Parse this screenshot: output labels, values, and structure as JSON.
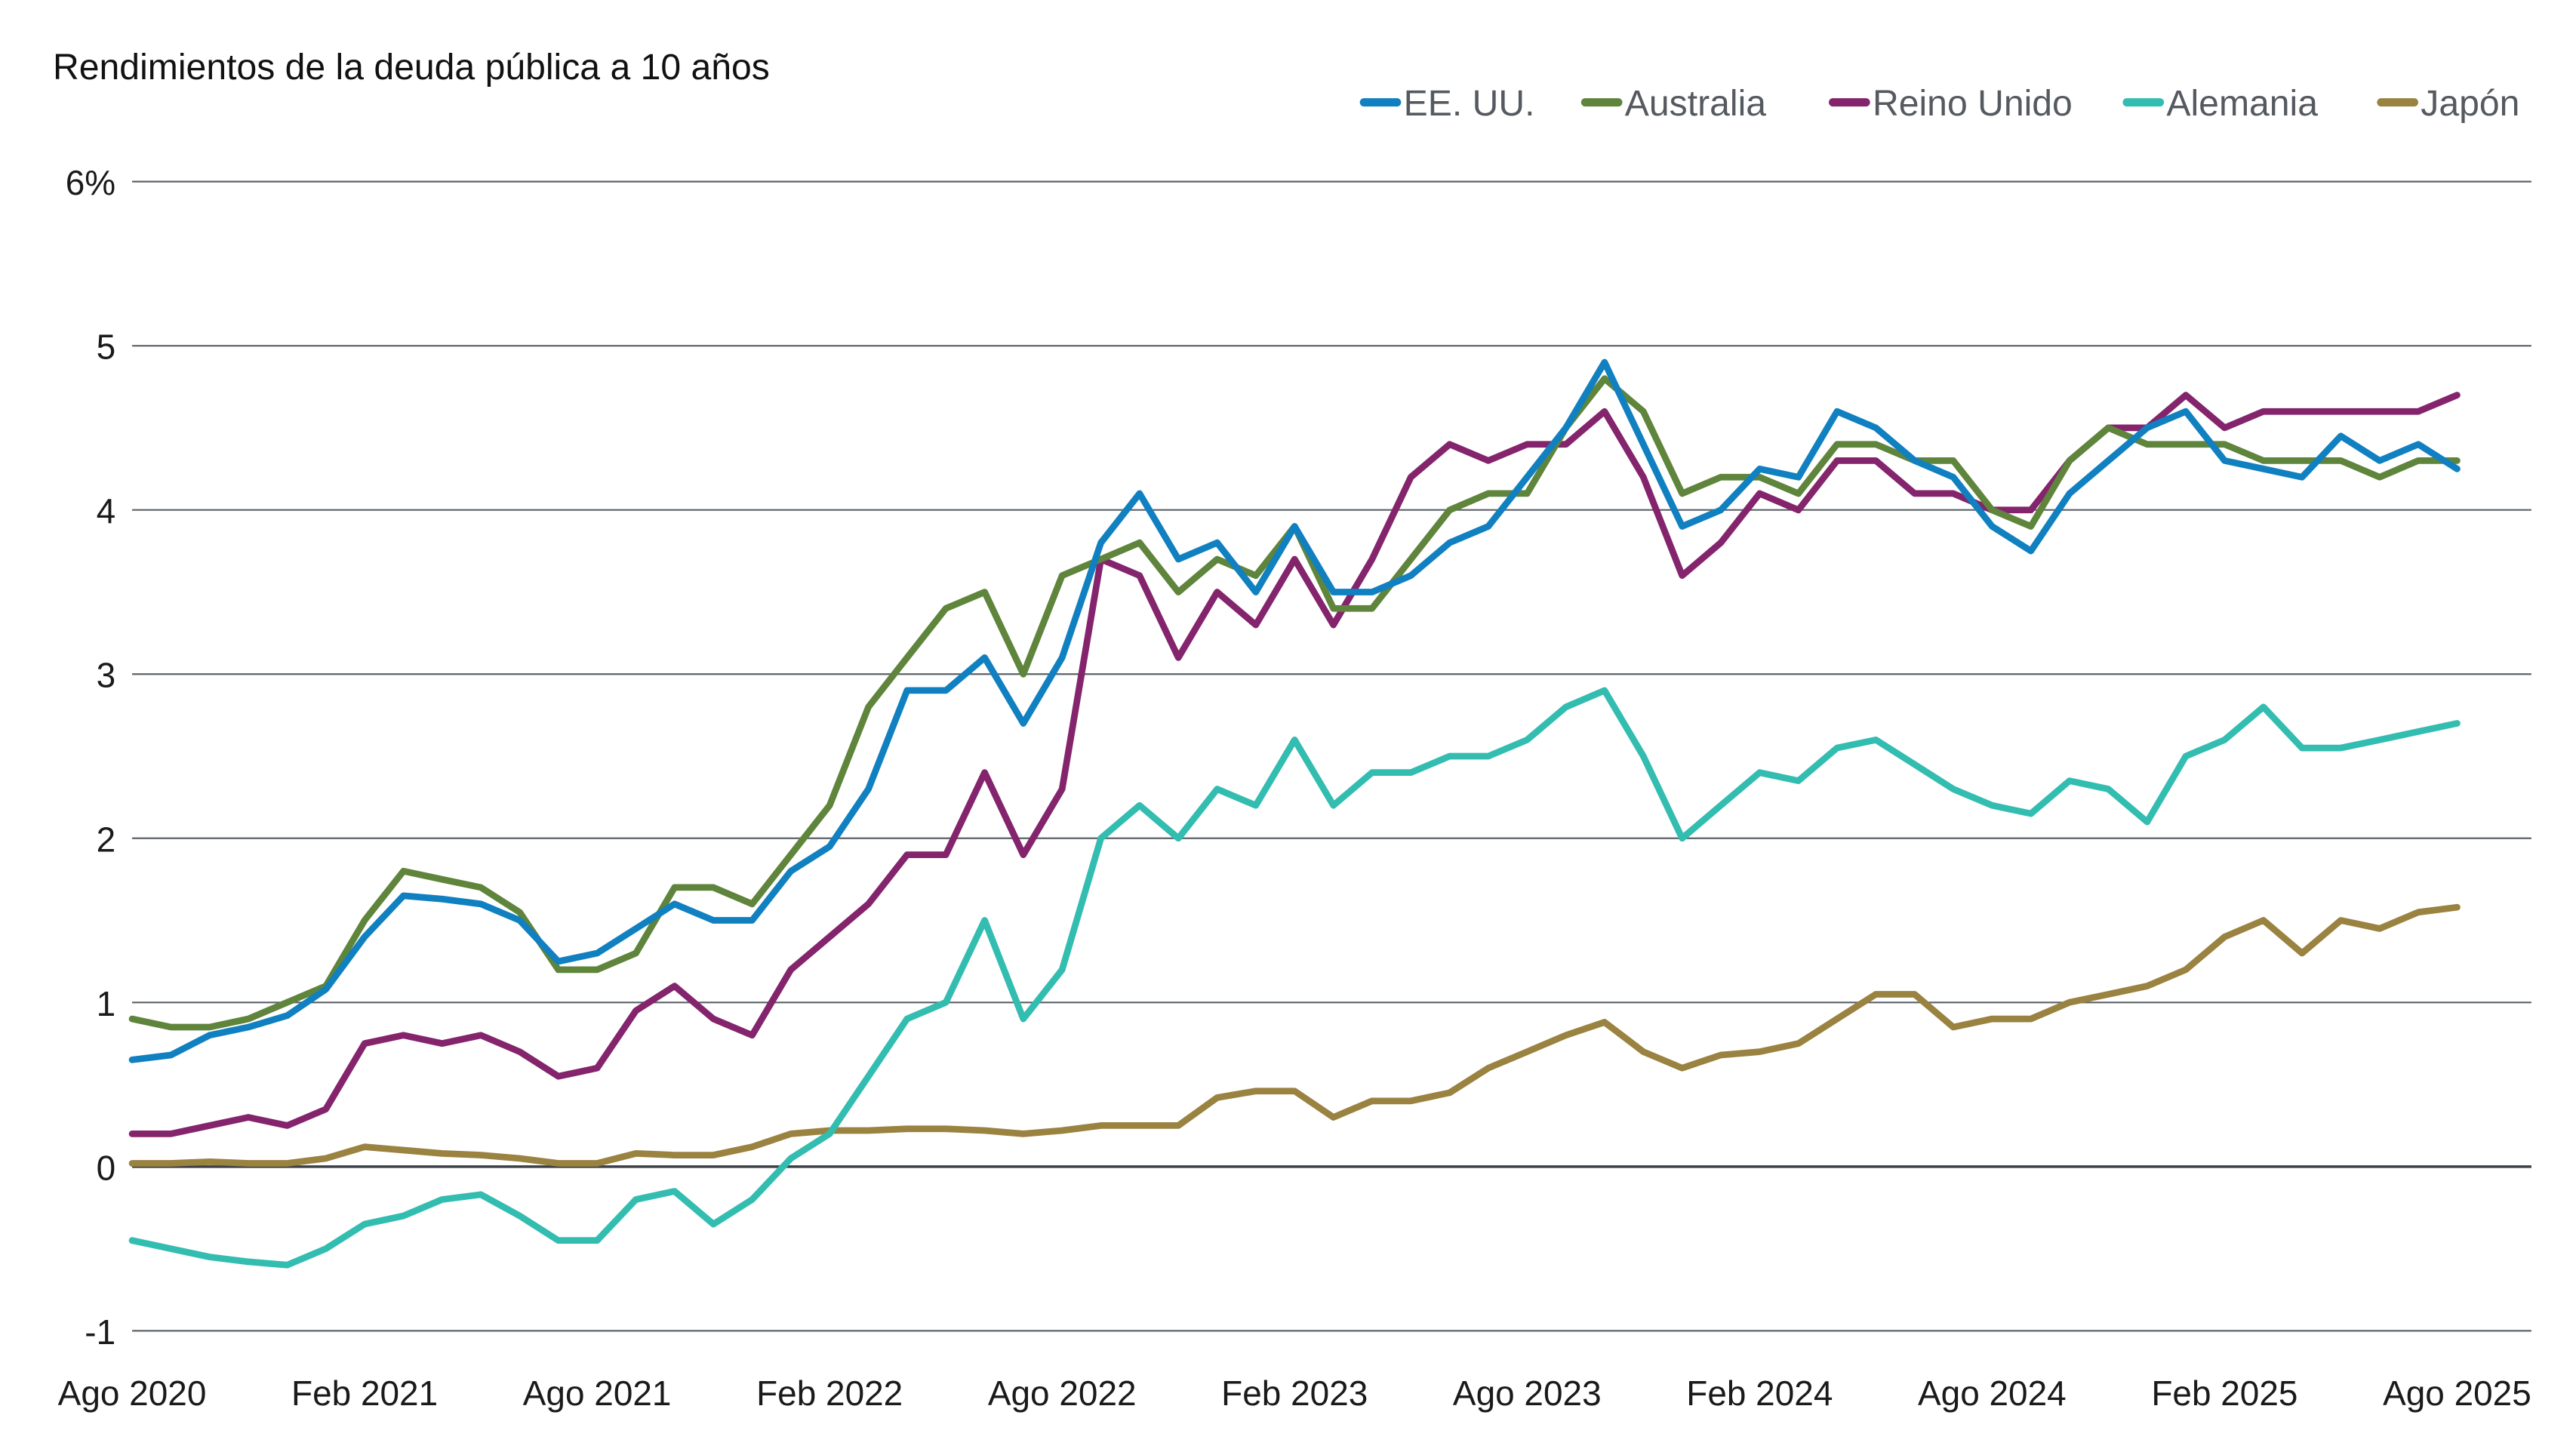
{
  "chart_data": {
    "type": "line",
    "title": "Rendimientos de la deuda pública a 10 años",
    "xlabel": "",
    "ylabel": "",
    "ylim": [
      -1,
      6
    ],
    "yticks": [
      "-1",
      "0",
      "1",
      "2",
      "3",
      "4",
      "5",
      "6%"
    ],
    "ytick_values": [
      -1,
      0,
      1,
      2,
      3,
      4,
      5,
      6
    ],
    "xticks": [
      "Ago 2020",
      "Feb 2021",
      "Ago 2021",
      "Feb 2022",
      "Ago 2022",
      "Feb 2023",
      "Ago 2023",
      "Feb 2024",
      "Ago 2024",
      "Feb 2025",
      "Ago 2025"
    ],
    "x_start": "2020-08",
    "x_end": "2025-08",
    "x_frequency": "monthly",
    "grid": "horizontal",
    "legend_position": "top-right",
    "series": [
      {
        "name": "EE. UU.",
        "color": "#1080c0",
        "values": [
          0.65,
          0.68,
          0.8,
          0.85,
          0.92,
          1.08,
          1.4,
          1.65,
          1.63,
          1.6,
          1.5,
          1.25,
          1.3,
          1.45,
          1.6,
          1.5,
          1.5,
          1.8,
          1.95,
          2.3,
          2.9,
          2.9,
          3.1,
          2.7,
          3.1,
          3.8,
          4.1,
          3.7,
          3.8,
          3.5,
          3.9,
          3.5,
          3.5,
          3.6,
          3.8,
          3.9,
          4.2,
          4.5,
          4.9,
          4.4,
          3.9,
          4.0,
          4.25,
          4.2,
          4.6,
          4.5,
          4.3,
          4.2,
          3.9,
          3.75,
          4.1,
          4.3,
          4.5,
          4.6,
          4.3,
          4.25,
          4.2,
          4.45,
          4.3,
          4.4,
          4.25
        ]
      },
      {
        "name": "Australia",
        "color": "#5f843c",
        "values": [
          0.9,
          0.85,
          0.85,
          0.9,
          1.0,
          1.1,
          1.5,
          1.8,
          1.75,
          1.7,
          1.55,
          1.2,
          1.2,
          1.3,
          1.7,
          1.7,
          1.6,
          1.9,
          2.2,
          2.8,
          3.1,
          3.4,
          3.5,
          3.0,
          3.6,
          3.7,
          3.8,
          3.5,
          3.7,
          3.6,
          3.9,
          3.4,
          3.4,
          3.7,
          4.0,
          4.1,
          4.1,
          4.5,
          4.8,
          4.6,
          4.1,
          4.2,
          4.2,
          4.1,
          4.4,
          4.4,
          4.3,
          4.3,
          4.0,
          3.9,
          4.3,
          4.5,
          4.4,
          4.4,
          4.4,
          4.3,
          4.3,
          4.3,
          4.2,
          4.3,
          4.3
        ]
      },
      {
        "name": "Reino Unido",
        "color": "#84246c",
        "values": [
          0.2,
          0.2,
          0.25,
          0.3,
          0.25,
          0.35,
          0.75,
          0.8,
          0.75,
          0.8,
          0.7,
          0.55,
          0.6,
          0.95,
          1.1,
          0.9,
          0.8,
          1.2,
          1.4,
          1.6,
          1.9,
          1.9,
          2.4,
          1.9,
          2.3,
          3.7,
          3.6,
          3.1,
          3.5,
          3.3,
          3.7,
          3.3,
          3.7,
          4.2,
          4.4,
          4.3,
          4.4,
          4.4,
          4.6,
          4.2,
          3.6,
          3.8,
          4.1,
          4.0,
          4.3,
          4.3,
          4.1,
          4.1,
          4.0,
          4.0,
          4.3,
          4.5,
          4.5,
          4.7,
          4.5,
          4.6,
          4.6,
          4.6,
          4.6,
          4.6,
          4.7
        ]
      },
      {
        "name": "Alemania",
        "color": "#33bdb0",
        "values": [
          -0.45,
          -0.5,
          -0.55,
          -0.58,
          -0.6,
          -0.5,
          -0.35,
          -0.3,
          -0.2,
          -0.17,
          -0.3,
          -0.45,
          -0.45,
          -0.2,
          -0.15,
          -0.35,
          -0.2,
          0.05,
          0.2,
          0.55,
          0.9,
          1.0,
          1.5,
          0.9,
          1.2,
          2.0,
          2.2,
          2.0,
          2.3,
          2.2,
          2.6,
          2.2,
          2.4,
          2.4,
          2.5,
          2.5,
          2.6,
          2.8,
          2.9,
          2.5,
          2.0,
          2.2,
          2.4,
          2.35,
          2.55,
          2.6,
          2.45,
          2.3,
          2.2,
          2.15,
          2.35,
          2.3,
          2.1,
          2.5,
          2.6,
          2.8,
          2.55,
          2.55,
          2.6,
          2.65,
          2.7
        ]
      },
      {
        "name": "Japón",
        "color": "#9a8240",
        "values": [
          0.02,
          0.02,
          0.03,
          0.02,
          0.02,
          0.05,
          0.12,
          0.1,
          0.08,
          0.07,
          0.05,
          0.02,
          0.02,
          0.08,
          0.07,
          0.07,
          0.12,
          0.2,
          0.22,
          0.22,
          0.23,
          0.23,
          0.22,
          0.2,
          0.22,
          0.25,
          0.25,
          0.25,
          0.42,
          0.46,
          0.46,
          0.3,
          0.4,
          0.4,
          0.45,
          0.6,
          0.7,
          0.8,
          0.88,
          0.7,
          0.6,
          0.68,
          0.7,
          0.75,
          0.9,
          1.05,
          1.05,
          0.85,
          0.9,
          0.9,
          1.0,
          1.05,
          1.1,
          1.2,
          1.4,
          1.5,
          1.3,
          1.5,
          1.45,
          1.55,
          1.58
        ]
      }
    ]
  }
}
